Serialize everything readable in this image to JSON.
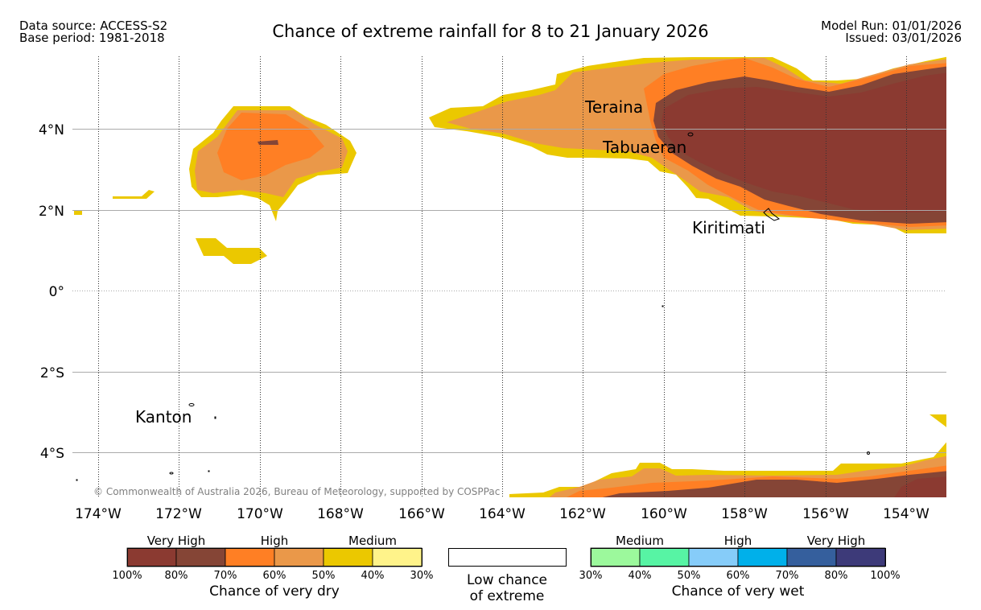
{
  "header": {
    "data_source": "Data source: ACCESS-S2",
    "base_period": "Base period: 1981-2018",
    "title": "Chance of extreme rainfall for 8 to 21 January 2026",
    "model_run": "Model Run: 01/01/2026",
    "issued": "Issued: 03/01/2026"
  },
  "axes": {
    "lat_labels": [
      "4°N",
      "2°N",
      "0°",
      "2°S",
      "4°S"
    ],
    "lon_labels": [
      "174°W",
      "172°W",
      "170°W",
      "168°W",
      "166°W",
      "164°W",
      "162°W",
      "160°W",
      "158°W",
      "156°W",
      "154°W"
    ]
  },
  "places": {
    "teraina": "Teraina",
    "tabuaeran": "Tabuaeran",
    "kiritimati": "Kiritimati",
    "kanton": "Kanton"
  },
  "copyright": "© Commonwealth of Australia 2026, Bureau of Meteorology, supported by COSPPac",
  "legend": {
    "dry": {
      "title": "Chance of very dry",
      "groups": [
        "Very High",
        "High",
        "Medium"
      ],
      "ticks": [
        "100%",
        "80%",
        "70%",
        "60%",
        "50%",
        "40%",
        "30%"
      ],
      "colors": [
        "#8b3a31",
        "#854536",
        "#ff7f24",
        "#ea9849",
        "#ebc800",
        "#fff38a"
      ]
    },
    "neutral": {
      "line1": "Low chance",
      "line2": "of extreme"
    },
    "wet": {
      "title": "Chance of very wet",
      "groups": [
        "Medium",
        "High",
        "Very High"
      ],
      "ticks": [
        "30%",
        "40%",
        "50%",
        "60%",
        "70%",
        "80%",
        "100%"
      ],
      "colors": [
        "#9cf99c",
        "#57f4a4",
        "#86ccf9",
        "#00b0ea",
        "#355f9d",
        "#3d3a79"
      ]
    }
  }
}
